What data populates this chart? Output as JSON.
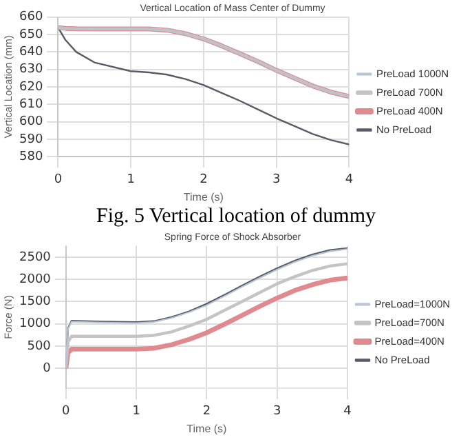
{
  "chart_data": [
    {
      "type": "line",
      "title": "Vertical Location of Mass Center of Dummy",
      "xlabel": "Time (s)",
      "ylabel": "Vertical Location (mm)",
      "x": [
        0,
        0.1,
        0.25,
        0.5,
        1,
        1.25,
        1.5,
        1.75,
        2,
        2.25,
        2.5,
        2.75,
        3,
        3.25,
        3.5,
        3.75,
        4
      ],
      "series": [
        {
          "name": "PreLoad 1000N",
          "color": "#b9c3d6",
          "values": [
            654,
            653.5,
            653.3,
            653.2,
            653.2,
            653.2,
            652.5,
            650.5,
            647.5,
            643.5,
            639,
            634.5,
            629.5,
            625,
            620.5,
            617,
            614.5
          ]
        },
        {
          "name": "PreLoad 700N",
          "color": "#c4c4c4",
          "values": [
            654,
            653.5,
            653.3,
            653.2,
            653.2,
            653.2,
            652.5,
            650.5,
            647.5,
            643.5,
            639,
            634.5,
            629.5,
            625,
            620.5,
            617,
            614.5
          ]
        },
        {
          "name": "PreLoad 400N",
          "color": "#e0898f",
          "values": [
            654,
            653.5,
            653.3,
            653.2,
            653.2,
            653.2,
            652.5,
            650.5,
            647.5,
            643.5,
            639,
            634.5,
            629.5,
            625,
            620.5,
            617,
            614.5
          ]
        },
        {
          "name": "No PreLoad",
          "color": "#5a5a68",
          "values": [
            654,
            647,
            640,
            634,
            629,
            628.3,
            627,
            624.5,
            621,
            616.5,
            612,
            607,
            602,
            597.5,
            593,
            589.5,
            587
          ]
        }
      ],
      "xlim": [
        0,
        4
      ],
      "xticks": [
        0,
        1,
        2,
        3,
        4
      ],
      "ylim": [
        580,
        660
      ],
      "yticks": [
        580,
        590,
        600,
        610,
        620,
        630,
        640,
        650,
        660
      ],
      "grid": true,
      "legend": "right",
      "marker": "none",
      "line_style": "solid",
      "annotations": [
        "Fig.  5 Vertical location of dummy"
      ]
    },
    {
      "type": "line",
      "title": "Spring Force of Shock Absorber",
      "xlabel": "Time (s)",
      "ylabel": "Force (N)",
      "x": [
        0,
        0.03,
        0.08,
        0.25,
        0.5,
        1,
        1.25,
        1.5,
        1.75,
        2,
        2.25,
        2.5,
        2.75,
        3,
        3.25,
        3.5,
        3.75,
        4
      ],
      "series": [
        {
          "name": "PreLoad=1000N",
          "color": "#b9c3d6",
          "values": [
            0,
            880,
            1050,
            1040,
            1030,
            1020,
            1040,
            1130,
            1260,
            1420,
            1620,
            1830,
            2030,
            2220,
            2390,
            2530,
            2630,
            2680
          ]
        },
        {
          "name": "PreLoad=700N",
          "color": "#c4c4c4",
          "values": [
            0,
            600,
            720,
            720,
            720,
            720,
            740,
            820,
            950,
            1100,
            1300,
            1500,
            1700,
            1900,
            2060,
            2200,
            2300,
            2350
          ]
        },
        {
          "name": "PreLoad=400N",
          "color": "#e0898f",
          "values": [
            0,
            350,
            430,
            430,
            430,
            430,
            450,
            530,
            650,
            800,
            990,
            1190,
            1390,
            1580,
            1750,
            1880,
            1980,
            2030
          ]
        },
        {
          "name": "No PreLoad",
          "color": "#5a5a68",
          "values": [
            0,
            900,
            1070,
            1060,
            1050,
            1040,
            1060,
            1150,
            1280,
            1450,
            1650,
            1860,
            2060,
            2250,
            2420,
            2560,
            2660,
            2700
          ]
        }
      ],
      "xlim": [
        0,
        4
      ],
      "xticks": [
        0,
        1,
        2,
        3,
        4
      ],
      "ylim": [
        -450,
        2750
      ],
      "yticks": [
        0,
        500,
        1000,
        1500,
        2000,
        2500
      ],
      "grid": true,
      "legend": "right",
      "marker": "none",
      "line_style": "solid"
    }
  ]
}
